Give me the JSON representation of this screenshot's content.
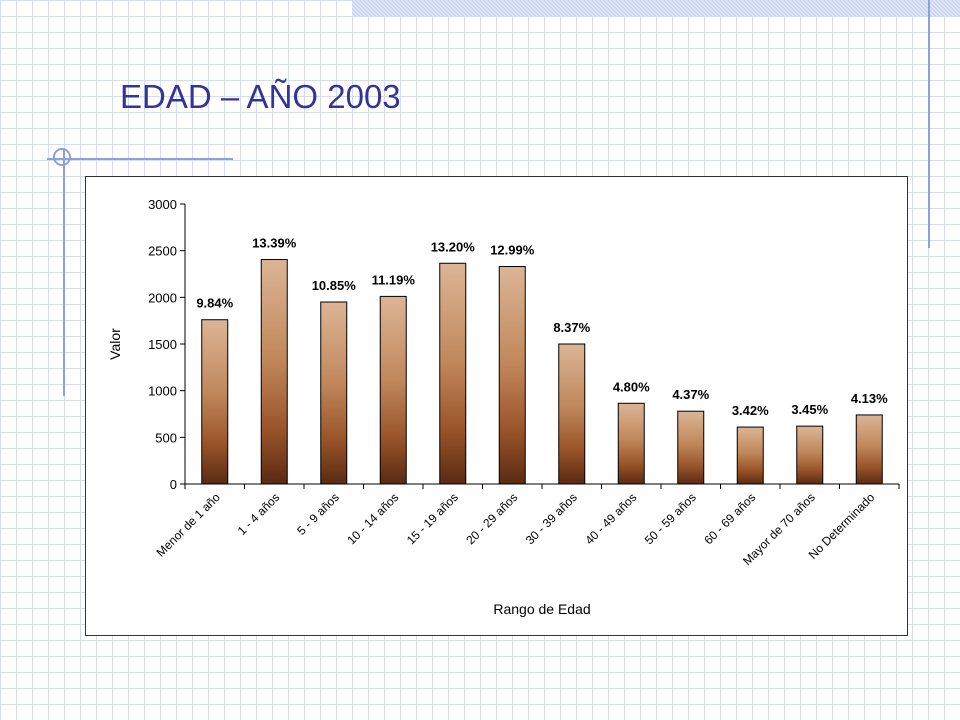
{
  "slide": {
    "title": "EDAD – AÑO 2003"
  },
  "colors": {
    "title": "#333399",
    "grid": "#d6dcef",
    "bar_top": "#dcb596",
    "bar_bottom": "#5a2a12"
  },
  "chart_data": {
    "type": "bar",
    "title": "",
    "xlabel": "Rango de Edad",
    "ylabel": "Valor",
    "ylim": [
      0,
      3000
    ],
    "yticks": [
      "0",
      "500",
      "1000",
      "1500",
      "2000",
      "2500",
      "3000"
    ],
    "grid": false,
    "legend": "none",
    "categories": [
      "Menor de 1 año",
      "1 - 4 años",
      "5 - 9 años",
      "10 - 14 años",
      "15 - 19 años",
      "20 - 29 años",
      "30 - 39 años",
      "40 - 49 años",
      "50 - 59 años",
      "60 - 69 años",
      "Mayor de 70 años",
      "No Determinado"
    ],
    "values": [
      1760,
      2405,
      1950,
      2010,
      2365,
      2330,
      1500,
      865,
      780,
      610,
      620,
      740
    ],
    "data_labels": [
      "9.84%",
      "13.39%",
      "10.85%",
      "11.19%",
      "13.20%",
      "12.99%",
      "8.37%",
      "4.80%",
      "4.37%",
      "3.42%",
      "3.45%",
      "4.13%"
    ]
  }
}
